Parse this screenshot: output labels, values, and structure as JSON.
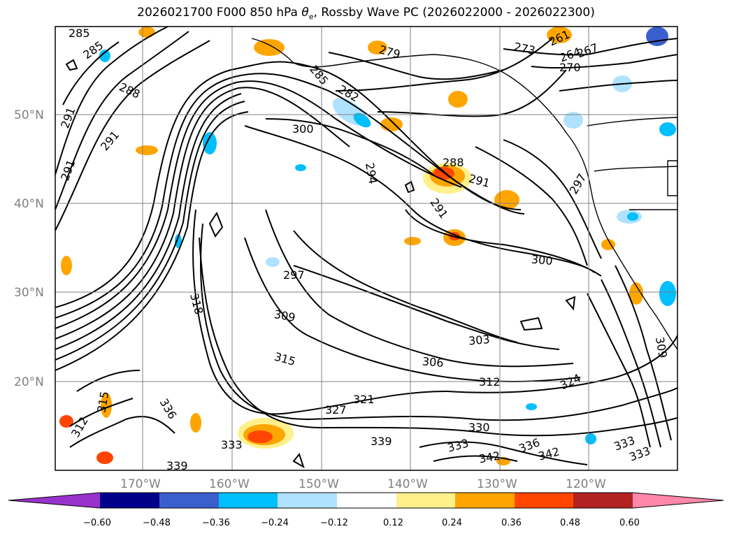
{
  "title": {
    "text": "2026021700 F000 850 hPa θe, Rossby Wave PC (2026022000 - 2026022300)",
    "prefix": "2026021700 F000 850 hPa ",
    "theta_symbol": "θ",
    "theta_sub": "e",
    "suffix": ", Rossby Wave PC (2026022000 - 2026022300)"
  },
  "axes": {
    "lat_labels": [
      "50°N",
      "40°N",
      "30°N",
      "20°N"
    ],
    "lon_labels": [
      "170°W",
      "160°W",
      "150°W",
      "140°W",
      "130°W",
      "120°W"
    ]
  },
  "contour_labels": [
    "285",
    "285",
    "288",
    "291",
    "291",
    "291",
    "279",
    "282",
    "285",
    "273",
    "264",
    "267",
    "270",
    "261",
    "300",
    "294",
    "288",
    "291",
    "291",
    "297",
    "300",
    "297",
    "309",
    "303",
    "306",
    "312",
    "315",
    "318",
    "321",
    "324",
    "327",
    "330",
    "333",
    "336",
    "333",
    "336",
    "339",
    "339",
    "342",
    "342",
    "333",
    "333",
    "309",
    "312",
    "315"
  ],
  "colorbar": {
    "colors": [
      "#9932cc",
      "#00008b",
      "#3a5fcd",
      "#00bfff",
      "#b0e2ff",
      "#ffffff",
      "#fff08c",
      "#ffa500",
      "#ff4500",
      "#b22222",
      "#ff88aa"
    ],
    "tick_labels": [
      "−0.60",
      "−0.48",
      "−0.36",
      "−0.24",
      "−0.12",
      "0.12",
      "0.24",
      "0.36",
      "0.48",
      "0.60"
    ]
  },
  "colors": {
    "contour": "#000000",
    "gridline": "#808080",
    "coast": "#000000"
  }
}
